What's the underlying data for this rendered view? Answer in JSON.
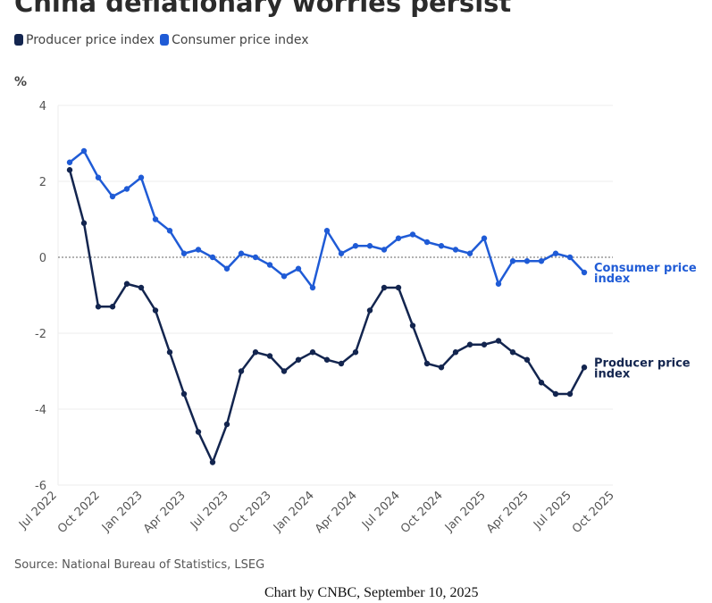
{
  "chart_data": {
    "type": "line",
    "title": "China deflationary worries persist",
    "ylabel": "%",
    "ylim": [
      -6,
      4
    ],
    "yticks": [
      4,
      2,
      0,
      -2,
      -4,
      -6
    ],
    "xticks": [
      "Jul 2022",
      "Oct 2022",
      "Jan 2023",
      "Apr 2023",
      "Jul 2023",
      "Oct 2023",
      "Jan 2024",
      "Apr 2024",
      "Jul 2024",
      "Oct 2024",
      "Jan 2025",
      "Apr 2025",
      "Jul 2025",
      "Oct 2025"
    ],
    "x_start": "Aug 2022",
    "x_end": "Aug 2025",
    "grid": "horizontal",
    "legend": "top-left",
    "series": [
      {
        "name": "Producer price index",
        "end_label": "Producer price index",
        "color": "#13254f",
        "values": [
          2.3,
          0.9,
          -1.3,
          -1.3,
          -0.7,
          -0.8,
          -1.4,
          -2.5,
          -3.6,
          -4.6,
          -5.4,
          -4.4,
          -3.0,
          -2.5,
          -2.6,
          -3.0,
          -2.7,
          -2.5,
          -2.7,
          -2.8,
          -2.5,
          -1.4,
          -0.8,
          -0.8,
          -1.8,
          -2.8,
          -2.9,
          -2.5,
          -2.3,
          -2.3,
          -2.2,
          -2.5,
          -2.7,
          -3.3,
          -3.6,
          -3.6,
          -2.9
        ]
      },
      {
        "name": "Consumer price index",
        "end_label": "Consumer price index",
        "color": "#1f5bd6",
        "values": [
          2.5,
          2.8,
          2.1,
          1.6,
          1.8,
          2.1,
          1.0,
          0.7,
          0.1,
          0.2,
          0.0,
          -0.3,
          0.1,
          0.0,
          -0.2,
          -0.5,
          -0.3,
          -0.8,
          0.7,
          0.1,
          0.3,
          0.3,
          0.2,
          0.5,
          0.6,
          0.4,
          0.3,
          0.2,
          0.1,
          0.5,
          -0.7,
          -0.1,
          -0.1,
          -0.1,
          0.1,
          0.0,
          -0.4
        ]
      }
    ]
  },
  "source": "Source: National Bureau of Statistics, LSEG",
  "credit": "Chart by CNBC, September 10, 2025"
}
